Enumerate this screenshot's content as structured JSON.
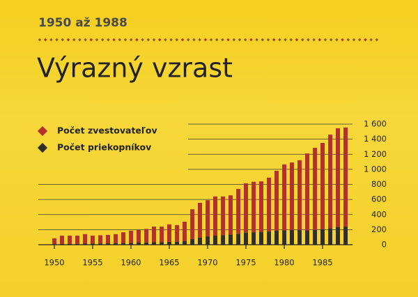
{
  "chart_data": {
    "type": "stacked-bar",
    "subtitle": "1950 až 1988",
    "title": "Výrazný vzrast",
    "x": [
      1950,
      1951,
      1952,
      1953,
      1954,
      1955,
      1956,
      1957,
      1958,
      1959,
      1960,
      1961,
      1962,
      1963,
      1964,
      1965,
      1966,
      1967,
      1968,
      1969,
      1970,
      1971,
      1972,
      1973,
      1974,
      1975,
      1976,
      1977,
      1978,
      1979,
      1980,
      1981,
      1982,
      1983,
      1984,
      1985,
      1986,
      1987,
      1988
    ],
    "series": [
      {
        "name": "Počet zvestovateľov",
        "color": "#b3312a",
        "values": [
          77,
          110,
          108,
          108,
          126,
          105,
          109,
          112,
          120,
          143,
          160,
          167,
          180,
          208,
          205,
          232,
          220,
          255,
          395,
          460,
          480,
          520,
          515,
          520,
          595,
          655,
          670,
          670,
          715,
          795,
          875,
          895,
          925,
          1020,
          1090,
          1145,
          1240,
          1310,
          1315
        ]
      },
      {
        "name": "Počet priekopníkov",
        "color": "#2f2f2a",
        "values": [
          8,
          10,
          12,
          12,
          14,
          15,
          16,
          18,
          20,
          22,
          25,
          28,
          30,
          32,
          35,
          38,
          40,
          50,
          75,
          95,
          110,
          120,
          125,
          135,
          145,
          160,
          165,
          170,
          175,
          185,
          190,
          195,
          195,
          190,
          195,
          205,
          220,
          235,
          240
        ]
      }
    ],
    "xlim": [
      1947,
      1991
    ],
    "xticks": [
      1950,
      1955,
      1960,
      1965,
      1970,
      1975,
      1980,
      1985
    ],
    "ylim": [
      0,
      1600
    ],
    "yticks": [
      0,
      200,
      400,
      600,
      800,
      {
        "value": 1000,
        "label": "1 000"
      },
      {
        "value": 1200,
        "label": "1 200"
      },
      {
        "value": 1400,
        "label": "1 400"
      },
      {
        "value": 1600,
        "label": "1 600"
      }
    ],
    "grid": true
  }
}
